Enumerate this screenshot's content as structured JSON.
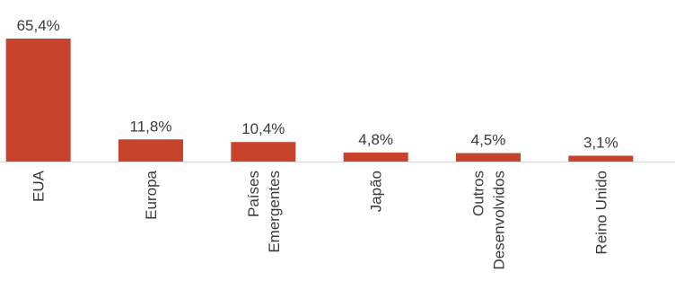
{
  "chart_data": {
    "type": "bar",
    "categories": [
      [
        "EUA"
      ],
      [
        "Europa"
      ],
      [
        "Países",
        "Emergentes"
      ],
      [
        "Japão"
      ],
      [
        "Outros",
        "Desenvolvidos"
      ],
      [
        "Reino Unido"
      ]
    ],
    "values": [
      65.4,
      11.8,
      10.4,
      4.8,
      4.5,
      3.1
    ],
    "data_labels": [
      "65,4%",
      "11,8%",
      "10,4%",
      "4,8%",
      "4,5%",
      "3,1%"
    ],
    "ylim": [
      0,
      65.4
    ],
    "grid": false,
    "bar_color": "#c8432b",
    "axis_color": "#d9d9d9"
  }
}
